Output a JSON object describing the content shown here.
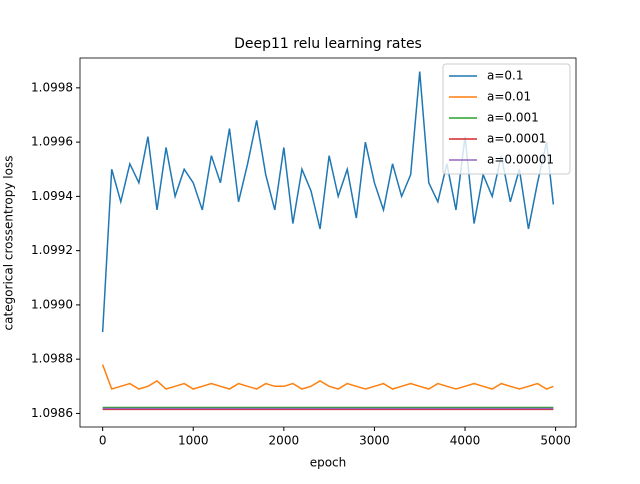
{
  "chart_data": {
    "type": "line",
    "title": "Deep11 relu learning rates",
    "xlabel": "epoch",
    "ylabel": "categorical crossentropy loss",
    "x": [
      0,
      100,
      200,
      300,
      400,
      500,
      600,
      700,
      800,
      900,
      1000,
      1100,
      1200,
      1300,
      1400,
      1500,
      1600,
      1700,
      1800,
      1900,
      2000,
      2100,
      2200,
      2300,
      2400,
      2500,
      2600,
      2700,
      2800,
      2900,
      3000,
      3100,
      3200,
      3300,
      3400,
      3500,
      3600,
      3700,
      3800,
      3900,
      4000,
      4100,
      4200,
      4300,
      4400,
      4500,
      4600,
      4700,
      4800,
      4900,
      4975
    ],
    "series": [
      {
        "name": "a=0.1",
        "color": "#1f77b4",
        "values": [
          1.0989,
          1.0995,
          1.09938,
          1.09952,
          1.09945,
          1.09962,
          1.09935,
          1.09958,
          1.0994,
          1.0995,
          1.09945,
          1.09935,
          1.09955,
          1.09945,
          1.09965,
          1.09938,
          1.09952,
          1.09968,
          1.09948,
          1.09935,
          1.09958,
          1.0993,
          1.0995,
          1.09942,
          1.09928,
          1.09955,
          1.0994,
          1.0995,
          1.09932,
          1.0996,
          1.09945,
          1.09935,
          1.09952,
          1.0994,
          1.09948,
          1.09986,
          1.09945,
          1.09938,
          1.09952,
          1.09935,
          1.09962,
          1.0993,
          1.09948,
          1.0994,
          1.09955,
          1.09938,
          1.0995,
          1.09928,
          1.09945,
          1.0996,
          1.09937
        ]
      },
      {
        "name": "a=0.01",
        "color": "#ff7f0e",
        "values": [
          1.09878,
          1.09869,
          1.0987,
          1.09871,
          1.09869,
          1.0987,
          1.09872,
          1.09869,
          1.0987,
          1.09871,
          1.09869,
          1.0987,
          1.09871,
          1.0987,
          1.09869,
          1.09871,
          1.0987,
          1.09869,
          1.09871,
          1.0987,
          1.0987,
          1.09871,
          1.09869,
          1.0987,
          1.09872,
          1.0987,
          1.09869,
          1.09871,
          1.0987,
          1.09869,
          1.0987,
          1.09871,
          1.09869,
          1.0987,
          1.09871,
          1.0987,
          1.09869,
          1.09871,
          1.0987,
          1.09869,
          1.0987,
          1.09871,
          1.0987,
          1.09869,
          1.09871,
          1.0987,
          1.09869,
          1.0987,
          1.09871,
          1.09869,
          1.0987
        ]
      },
      {
        "name": "a=0.001",
        "color": "#2ca02c",
        "values": [
          1.098622,
          1.098622,
          1.098622,
          1.098622,
          1.098622,
          1.098622,
          1.098622,
          1.098622,
          1.098622,
          1.098622,
          1.098622,
          1.098622,
          1.098622,
          1.098622,
          1.098622,
          1.098622,
          1.098622,
          1.098622,
          1.098622,
          1.098622,
          1.098622,
          1.098622,
          1.098622,
          1.098622,
          1.098622,
          1.098622,
          1.098622,
          1.098622,
          1.098622,
          1.098622,
          1.098622,
          1.098622,
          1.098622,
          1.098622,
          1.098622,
          1.098622,
          1.098622,
          1.098622,
          1.098622,
          1.098622,
          1.098622,
          1.098622,
          1.098622,
          1.098622,
          1.098622,
          1.098622,
          1.098622,
          1.098622,
          1.098622,
          1.098622,
          1.098622
        ]
      },
      {
        "name": "a=0.0001",
        "color": "#d62728",
        "values": [
          1.098615,
          1.098615,
          1.098615,
          1.098615,
          1.098615,
          1.098615,
          1.098615,
          1.098615,
          1.098615,
          1.098615,
          1.098615,
          1.098615,
          1.098615,
          1.098615,
          1.098615,
          1.098615,
          1.098615,
          1.098615,
          1.098615,
          1.098615,
          1.098615,
          1.098615,
          1.098615,
          1.098615,
          1.098615,
          1.098615,
          1.098615,
          1.098615,
          1.098615,
          1.098615,
          1.098615,
          1.098615,
          1.098615,
          1.098615,
          1.098615,
          1.098615,
          1.098615,
          1.098615,
          1.098615,
          1.098615,
          1.098615,
          1.098615,
          1.098615,
          1.098615,
          1.098615,
          1.098615,
          1.098615,
          1.098615,
          1.098615,
          1.098615,
          1.098615
        ]
      },
      {
        "name": "a=0.00001",
        "color": "#9467bd",
        "values": [
          1.098618,
          1.098618,
          1.098618,
          1.098618,
          1.098618,
          1.098618,
          1.098618,
          1.098618,
          1.098618,
          1.098618,
          1.098618,
          1.098618,
          1.098618,
          1.098618,
          1.098618,
          1.098618,
          1.098618,
          1.098618,
          1.098618,
          1.098618,
          1.098618,
          1.098618,
          1.098618,
          1.098618,
          1.098618,
          1.098618,
          1.098618,
          1.098618,
          1.098618,
          1.098618,
          1.098618,
          1.098618,
          1.098618,
          1.098618,
          1.098618,
          1.098618,
          1.098618,
          1.098618,
          1.098618,
          1.098618,
          1.098618,
          1.098618,
          1.098618,
          1.098618,
          1.098618,
          1.098618,
          1.098618,
          1.098618,
          1.098618,
          1.098618,
          1.098618
        ]
      }
    ],
    "xlim": [
      -250,
      5225
    ],
    "xticks": [
      0,
      1000,
      2000,
      3000,
      4000,
      5000
    ],
    "ylim": [
      1.09855,
      1.09991
    ],
    "yticks": [
      1.0986,
      1.0988,
      {
        "value": 1.099,
        "label": "1.0990"
      },
      1.0992,
      1.0994,
      1.0996,
      1.0998
    ],
    "legend": "upper right"
  }
}
